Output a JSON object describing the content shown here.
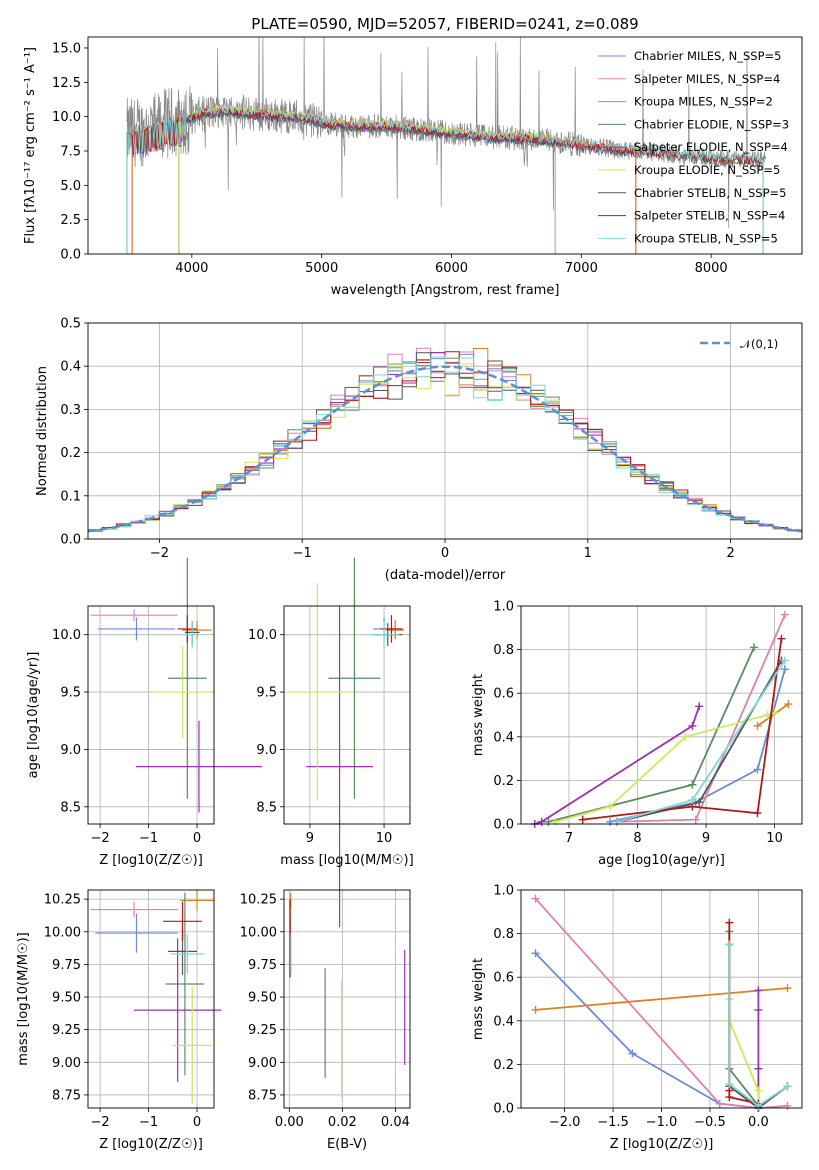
{
  "colors": {
    "Chabrier MILES": "#6a8bd8",
    "Salpeter MILES": "#e080b0",
    "Kroupa MILES": "#d9822b",
    "Chabrier ELODIE": "#5e8a62",
    "Salpeter ELODIE": "#9b30b0",
    "Kroupa ELODIE": "#cde85a",
    "Chabrier STELIB": "#555555",
    "Salpeter STELIB": "#b01818",
    "Kroupa STELIB": "#7fd6d6",
    "data": "#888888",
    "grid": "#b0b0b0",
    "normal": "#5b8fd8"
  },
  "chart_data": [
    {
      "id": "spectrum",
      "type": "line",
      "title": "PLATE=0590, MJD=52057, FIBERID=0241, z=0.089",
      "xlabel": "wavelength [Angstrom, rest frame]",
      "ylabel": "Flux [fλ10⁻¹⁷ erg cm⁻² s⁻¹ A⁻¹]",
      "xlim": [
        3200,
        8700
      ],
      "ylim": [
        0,
        15.8
      ],
      "xticks": [
        4000,
        5000,
        6000,
        7000,
        8000
      ],
      "yticks": [
        0.0,
        2.5,
        5.0,
        7.5,
        10.0,
        12.5,
        15.0
      ],
      "grid": false,
      "legend_position": "top-right",
      "legend": [
        "Chabrier MILES, N_SSP=5",
        "Salpeter MILES, N_SSP=4",
        "Kroupa MILES, N_SSP=2",
        "Chabrier ELODIE, N_SSP=3",
        "Salpeter ELODIE, N_SSP=4",
        "Kroupa ELODIE, N_SSP=5",
        "Chabrier STELIB, N_SSP=5",
        "Salpeter STELIB, N_SSP=4",
        "Kroupa STELIB, N_SSP=5"
      ],
      "continuum": [
        [
          3500,
          8.8
        ],
        [
          3650,
          9.0
        ],
        [
          3800,
          9.5
        ],
        [
          3950,
          9.8
        ],
        [
          4100,
          10.3
        ],
        [
          4300,
          10.4
        ],
        [
          4500,
          10.2
        ],
        [
          4800,
          10.0
        ],
        [
          5000,
          9.6
        ],
        [
          5200,
          9.3
        ],
        [
          5500,
          9.3
        ],
        [
          5800,
          9.0
        ],
        [
          6000,
          8.8
        ],
        [
          6300,
          8.5
        ],
        [
          6600,
          8.4
        ],
        [
          6800,
          8.2
        ],
        [
          7000,
          7.9
        ],
        [
          7300,
          7.6
        ],
        [
          7700,
          7.3
        ],
        [
          8000,
          7.0
        ],
        [
          8400,
          6.8
        ]
      ],
      "model_ranges": [
        {
          "series": "Chabrier MILES",
          "x": [
            3540,
            7420
          ]
        },
        {
          "series": "Salpeter MILES",
          "x": [
            3540,
            7420
          ]
        },
        {
          "series": "Kroupa MILES",
          "x": [
            3540,
            7420
          ]
        },
        {
          "series": "Chabrier ELODIE",
          "x": [
            3900,
            6800
          ]
        },
        {
          "series": "Salpeter ELODIE",
          "x": [
            3900,
            6800
          ]
        },
        {
          "series": "Kroupa ELODIE",
          "x": [
            3900,
            6800
          ]
        },
        {
          "series": "Chabrier STELIB",
          "x": [
            3500,
            8400
          ]
        },
        {
          "series": "Salpeter STELIB",
          "x": [
            3500,
            8400
          ]
        },
        {
          "series": "Kroupa STELIB",
          "x": [
            3500,
            8400
          ]
        }
      ]
    },
    {
      "id": "residuals",
      "type": "histogram",
      "xlabel": "(data-model)/error",
      "ylabel": "Normed distribution",
      "xlim": [
        -2.5,
        2.5
      ],
      "ylim": [
        0,
        0.5
      ],
      "xticks": [
        -2,
        -1,
        0,
        1,
        2
      ],
      "yticks": [
        0.0,
        0.1,
        0.2,
        0.3,
        0.4,
        0.5
      ],
      "grid": true,
      "bin_width": 0.1,
      "legend": [
        "𝒩(0,1)"
      ],
      "legend_position": "top-right",
      "reference_curve": "normal(0,1)"
    },
    {
      "id": "age_vs_Z",
      "type": "errorbar",
      "xlabel": "Z [log10(Z/Z☉)]",
      "ylabel": "age  [log10(age/yr)]",
      "xlim": [
        -2.25,
        0.35
      ],
      "ylim": [
        8.35,
        10.25
      ],
      "xticks": [
        -2,
        -1,
        0
      ],
      "yticks": [
        8.5,
        9.0,
        9.5,
        10.0
      ],
      "grid": true,
      "points": [
        {
          "series": "Chabrier MILES",
          "x": -1.25,
          "y": 10.05,
          "xerr": 0.8,
          "yerr": 0.1
        },
        {
          "series": "Salpeter MILES",
          "x": -1.3,
          "y": 10.17,
          "xerr": 0.9,
          "yerr": 0.05
        },
        {
          "series": "Kroupa MILES",
          "x": 0.0,
          "y": 10.04,
          "xerr": 0.3,
          "yerr": 0.08
        },
        {
          "series": "Chabrier ELODIE",
          "x": -0.2,
          "y": 9.62,
          "xerr": 0.4,
          "yerr": 1.05
        },
        {
          "series": "Salpeter ELODIE",
          "x": 0.04,
          "y": 8.85,
          "xerr": 1.3,
          "yerr": 0.4
        },
        {
          "series": "Kroupa ELODIE",
          "x": -0.3,
          "y": 9.5,
          "xerr": 0.6,
          "yerr": 0.4
        },
        {
          "series": "Chabrier STELIB",
          "x": -0.1,
          "y": 10.02,
          "xerr": 0.15,
          "yerr": 0.1
        },
        {
          "series": "Salpeter STELIB",
          "x": -0.2,
          "y": 10.05,
          "xerr": 0.2,
          "yerr": 0.12
        },
        {
          "series": "Kroupa STELIB",
          "x": -0.1,
          "y": 10.0,
          "xerr": 0.2,
          "yerr": 0.12
        }
      ]
    },
    {
      "id": "age_vs_mass",
      "type": "errorbar",
      "xlabel": "mass [log10(M/M☉)]",
      "ylabel": "",
      "xlim": [
        8.65,
        10.35
      ],
      "ylim": [
        8.35,
        10.25
      ],
      "xticks": [
        9,
        10
      ],
      "yticks": [
        8.5,
        9.0,
        9.5,
        10.0
      ],
      "grid": true,
      "points": [
        {
          "series": "Chabrier MILES",
          "x": 10.0,
          "y": 10.05,
          "xerr": 0.15,
          "yerr": 0.1
        },
        {
          "series": "Salpeter MILES",
          "x": 10.15,
          "y": 10.05,
          "xerr": 0.1,
          "yerr": 0.08
        },
        {
          "series": "Kroupa MILES",
          "x": 10.15,
          "y": 10.04,
          "xerr": 0.12,
          "yerr": 0.08
        },
        {
          "series": "Chabrier ELODIE",
          "x": 9.6,
          "y": 9.62,
          "xerr": 0.35,
          "yerr": 1.05
        },
        {
          "series": "Salpeter ELODIE",
          "x": 9.4,
          "y": 8.85,
          "xerr": 0.45,
          "yerr": 1.4
        },
        {
          "series": "Kroupa ELODIE",
          "x": 9.1,
          "y": 9.5,
          "xerr": 0.45,
          "yerr": 0.95
        },
        {
          "series": "Chabrier STELIB",
          "x": 10.05,
          "y": 10.0,
          "xerr": 0.2,
          "yerr": 0.1
        },
        {
          "series": "Salpeter STELIB",
          "x": 10.1,
          "y": 10.05,
          "xerr": 0.15,
          "yerr": 0.12
        },
        {
          "series": "Kroupa STELIB",
          "x": 10.0,
          "y": 10.0,
          "xerr": 0.2,
          "yerr": 0.12
        }
      ]
    },
    {
      "id": "mass_weight_vs_age",
      "type": "line",
      "xlabel": "age  [log10(age/yr)]",
      "ylabel": "mass weight",
      "xlim": [
        6.3,
        10.4
      ],
      "ylim": [
        0,
        1.0
      ],
      "xticks": [
        7,
        8,
        9,
        10
      ],
      "yticks": [
        0.0,
        0.2,
        0.4,
        0.6,
        0.8,
        1.0
      ],
      "grid": true,
      "series": [
        {
          "series": "Chabrier MILES",
          "x": [
            7.6,
            8.85,
            9.75,
            10.15
          ],
          "y": [
            0.01,
            0.1,
            0.25,
            0.71
          ]
        },
        {
          "series": "Salpeter MILES",
          "x": [
            7.7,
            8.85,
            10.15
          ],
          "y": [
            0.01,
            0.02,
            0.96
          ]
        },
        {
          "series": "Kroupa MILES",
          "x": [
            9.75,
            10.2
          ],
          "y": [
            0.45,
            0.55
          ]
        },
        {
          "series": "Chabrier ELODIE",
          "x": [
            6.7,
            8.8,
            9.7
          ],
          "y": [
            0.01,
            0.18,
            0.81
          ]
        },
        {
          "series": "Salpeter ELODIE",
          "x": [
            6.5,
            6.6,
            8.8,
            8.9
          ],
          "y": [
            0.0,
            0.01,
            0.45,
            0.54
          ]
        },
        {
          "series": "Kroupa ELODIE",
          "x": [
            6.8,
            7.6,
            8.7,
            9.9,
            10.0
          ],
          "y": [
            0.01,
            0.08,
            0.4,
            0.5,
            0.51
          ]
        },
        {
          "series": "Chabrier STELIB",
          "x": [
            7.7,
            8.9,
            10.1
          ],
          "y": [
            0.01,
            0.1,
            0.75
          ]
        },
        {
          "series": "Salpeter STELIB",
          "x": [
            7.2,
            8.8,
            9.75,
            10.1
          ],
          "y": [
            0.02,
            0.08,
            0.05,
            0.85
          ]
        },
        {
          "series": "Kroupa STELIB",
          "x": [
            7.7,
            8.8,
            10.15
          ],
          "y": [
            0.01,
            0.11,
            0.75
          ]
        }
      ]
    },
    {
      "id": "mass_vs_Z",
      "type": "errorbar",
      "xlabel": "Z [log10(Z/Z☉)]",
      "ylabel": "mass [log10(M/M☉)]",
      "xlim": [
        -2.25,
        0.35
      ],
      "ylim": [
        8.65,
        10.32
      ],
      "xticks": [
        -2,
        -1,
        0
      ],
      "yticks": [
        8.75,
        9.0,
        9.25,
        9.5,
        9.75,
        10.0,
        10.25
      ],
      "grid": true,
      "points": [
        {
          "series": "Chabrier MILES",
          "x": -1.25,
          "y": 9.99,
          "xerr": 0.85,
          "yerr": 0.15
        },
        {
          "series": "Salpeter MILES",
          "x": -1.3,
          "y": 10.17,
          "xerr": 0.9,
          "yerr": 0.06
        },
        {
          "series": "Kroupa MILES",
          "x": 0.0,
          "y": 10.24,
          "xerr": 0.35,
          "yerr": 0.08
        },
        {
          "series": "Chabrier ELODIE",
          "x": -0.25,
          "y": 9.6,
          "xerr": 0.4,
          "yerr": 0.7
        },
        {
          "series": "Salpeter ELODIE",
          "x": -0.4,
          "y": 9.4,
          "xerr": 0.9,
          "yerr": 0.55
        },
        {
          "series": "Kroupa ELODIE",
          "x": -0.1,
          "y": 9.13,
          "xerr": 0.4,
          "yerr": 0.45
        },
        {
          "series": "Chabrier STELIB",
          "x": -0.3,
          "y": 9.85,
          "xerr": 0.3,
          "yerr": 0.18
        },
        {
          "series": "Salpeter STELIB",
          "x": -0.3,
          "y": 10.08,
          "xerr": 0.4,
          "yerr": 0.15
        },
        {
          "series": "Kroupa STELIB",
          "x": -0.2,
          "y": 9.83,
          "xerr": 0.35,
          "yerr": 0.15
        }
      ]
    },
    {
      "id": "mass_vs_ebv",
      "type": "errorbar",
      "xlabel": "E(B-V)",
      "ylabel": "",
      "xlim": [
        -0.002,
        0.0455
      ],
      "ylim": [
        8.65,
        10.32
      ],
      "xticks": [
        0.0,
        0.02,
        0.04
      ],
      "yticks": [
        8.75,
        9.0,
        9.25,
        9.5,
        9.75,
        10.0,
        10.25
      ],
      "grid": true,
      "points": [
        {
          "series": "Chabrier MILES",
          "x": 0.0003,
          "y": 9.99,
          "xerr": 0,
          "yerr": 0.15
        },
        {
          "series": "Salpeter MILES",
          "x": 0.0003,
          "y": 10.17,
          "xerr": 0,
          "yerr": 0.06
        },
        {
          "series": "Kroupa MILES",
          "x": 0.0005,
          "y": 10.24,
          "xerr": 0,
          "yerr": 0.06
        },
        {
          "series": "Chabrier ELODIE",
          "x": 0.0135,
          "y": 9.3,
          "xerr": 0,
          "yerr": 0.42
        },
        {
          "series": "Salpeter ELODIE",
          "x": 0.0435,
          "y": 9.42,
          "xerr": 0,
          "yerr": 0.44
        },
        {
          "series": "Kroupa ELODIE",
          "x": 0.0197,
          "y": 9.18,
          "xerr": 0,
          "yerr": 0.45
        },
        {
          "series": "Chabrier STELIB",
          "x": 0.0003,
          "y": 9.9,
          "xerr": 0,
          "yerr": 0.2
        },
        {
          "series": "Salpeter STELIB",
          "x": 0.0003,
          "y": 9.95,
          "xerr": 0,
          "yerr": 0.3
        },
        {
          "series": "Kroupa STELIB",
          "x": 0.0006,
          "y": 9.83,
          "xerr": 0,
          "yerr": 0.15
        }
      ]
    },
    {
      "id": "mass_weight_vs_Z",
      "type": "line",
      "xlabel": "Z [log10(Z/Z☉)]",
      "ylabel": "mass weight",
      "xlim": [
        -2.45,
        0.45
      ],
      "ylim": [
        0,
        1.0
      ],
      "xticks": [
        -2.0,
        -1.5,
        -1.0,
        -0.5,
        0.0
      ],
      "yticks": [
        0.0,
        0.2,
        0.4,
        0.6,
        0.8,
        1.0
      ],
      "grid": true,
      "series": [
        {
          "series": "Chabrier MILES",
          "x": [
            -2.3,
            -1.3,
            -0.4,
            0.0,
            0.3
          ],
          "y": [
            0.71,
            0.25,
            0.02,
            0.0,
            0.1
          ]
        },
        {
          "series": "Salpeter MILES",
          "x": [
            -2.3,
            -0.4,
            0.0,
            0.3
          ],
          "y": [
            0.96,
            0.02,
            0.0,
            0.01
          ]
        },
        {
          "series": "Kroupa MILES",
          "x": [
            -2.3,
            0.3
          ],
          "y": [
            0.45,
            0.55
          ]
        },
        {
          "series": "Chabrier ELODIE",
          "x": [
            -0.3,
            -0.3,
            0.0
          ],
          "y": [
            0.81,
            0.18,
            0.01
          ]
        },
        {
          "series": "Salpeter ELODIE",
          "x": [
            0.0,
            0.0,
            0.0,
            0.0
          ],
          "y": [
            0.54,
            0.45,
            0.18,
            0.0
          ]
        },
        {
          "series": "Kroupa ELODIE",
          "x": [
            -0.3,
            -0.3,
            0.0,
            0.0
          ],
          "y": [
            0.5,
            0.4,
            0.08,
            0.01
          ]
        },
        {
          "series": "Chabrier STELIB",
          "x": [
            -0.3,
            -0.3,
            0.0,
            0.3
          ],
          "y": [
            0.75,
            0.1,
            0.0,
            0.1
          ]
        },
        {
          "series": "Salpeter STELIB",
          "x": [
            -0.3,
            -0.3,
            -0.3,
            0.0
          ],
          "y": [
            0.85,
            0.08,
            0.05,
            0.02
          ]
        },
        {
          "series": "Kroupa STELIB",
          "x": [
            -0.3,
            -0.3,
            0.0,
            0.3
          ],
          "y": [
            0.75,
            0.11,
            0.01,
            0.1
          ]
        }
      ]
    }
  ]
}
